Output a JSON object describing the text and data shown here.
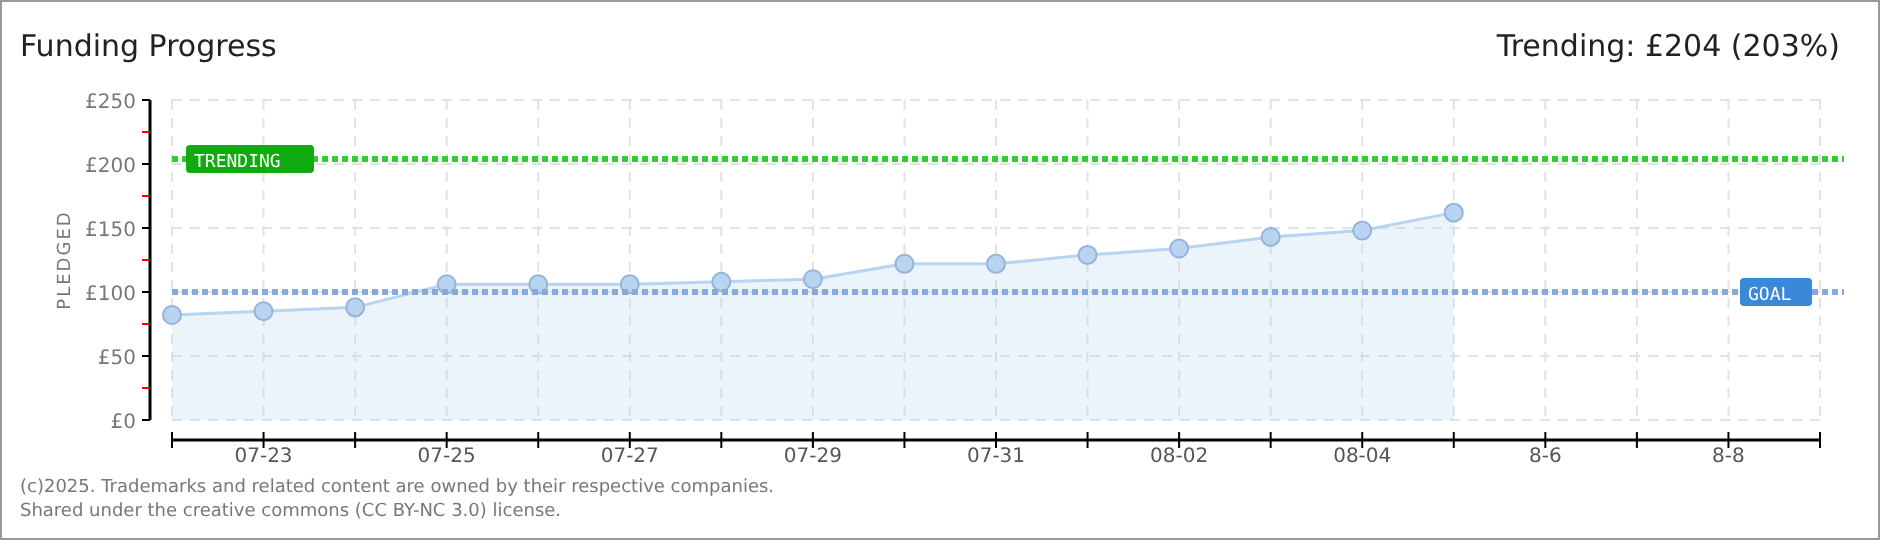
{
  "chart_data": {
    "type": "area",
    "title": "Funding Progress",
    "subtitle": "Trending:  £204 (203%)",
    "ylabel": "PLEDGED",
    "categories": [
      null,
      "07-23",
      null,
      "07-25",
      null,
      "07-27",
      null,
      "07-29",
      null,
      "07-31",
      null,
      "08-02",
      null,
      "08-04",
      null,
      "8-6",
      null,
      "8-8",
      null
    ],
    "series": [
      {
        "color": "#b8d4f0",
        "values": [
          82,
          85,
          88,
          106,
          106,
          106,
          108,
          110,
          122,
          122,
          129,
          134,
          143,
          148,
          162,
          null,
          null,
          null,
          null
        ]
      }
    ],
    "ylim": [
      0,
      250
    ],
    "yticks": [
      {
        "value": 0,
        "label": "£0"
      },
      {
        "value": 25,
        "label": null
      },
      {
        "value": 50,
        "label": "£50"
      },
      {
        "value": 75,
        "label": null
      },
      {
        "value": 100,
        "label": "£100"
      },
      {
        "value": 125,
        "label": null
      },
      {
        "value": 150,
        "label": "£150"
      },
      {
        "value": 175,
        "label": null
      },
      {
        "value": 200,
        "label": "£200"
      },
      {
        "value": 225,
        "label": null
      },
      {
        "value": 250,
        "label": "£250"
      }
    ],
    "ref_lines": [
      {
        "axis": "y",
        "value": 204,
        "label": "TRENDING",
        "color": "#33cc33",
        "line_style": "dotted"
      },
      {
        "axis": "y",
        "value": 100,
        "label": "GOAL",
        "color": "#88aad8",
        "line_style": "dotted"
      }
    ],
    "annotations": [
      "(c)2025. Trademarks and related content are owned by their respective companies.",
      "Shared under the creative commons (CC BY-NC 3.0) license."
    ],
    "grid": true,
    "marker": "circle"
  }
}
